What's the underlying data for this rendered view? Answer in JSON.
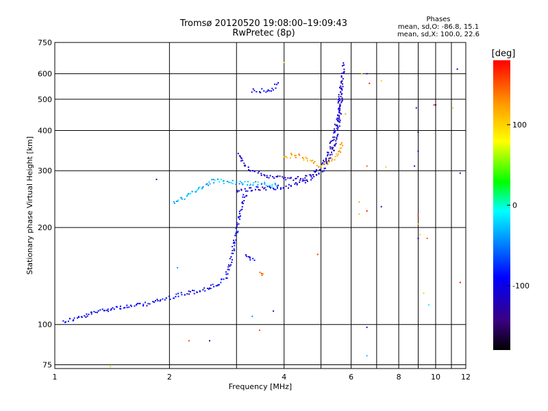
{
  "chart_data": {
    "type": "scatter",
    "title": "Tromsø 20120520 19:08:00–19:09:43",
    "subtitle": "RwPretec (8p)",
    "stats": {
      "heading": "Phases",
      "line1": "mean, sd,O: -86.8, 15.1",
      "line2": "mean, sd,X: 100.0, 22.6"
    },
    "xlabel": "Frequency [MHz]",
    "ylabel": "Stationary phase Virtual Height [km]",
    "x_scale": "log",
    "y_scale": "log",
    "xlim": [
      1,
      12
    ],
    "ylim": [
      73,
      750
    ],
    "x_ticks": [
      1,
      2,
      4,
      6,
      8,
      10,
      12
    ],
    "x_grid": [
      2,
      3,
      4,
      5,
      6,
      7,
      8,
      9,
      10,
      11,
      12
    ],
    "y_ticks": [
      75,
      100,
      200,
      300,
      400,
      500,
      600,
      750
    ],
    "grid": true,
    "colorbar": {
      "label": "[deg]",
      "range": [
        -180,
        180
      ],
      "ticks": [
        100,
        0,
        -100
      ]
    },
    "series": [
      {
        "phase_deg": -95,
        "points": [
          [
            1.05,
            102
          ],
          [
            1.08,
            103
          ],
          [
            1.12,
            104
          ],
          [
            1.16,
            105
          ],
          [
            1.2,
            106
          ],
          [
            1.25,
            108
          ],
          [
            1.3,
            110
          ],
          [
            1.35,
            111
          ],
          [
            1.4,
            112
          ],
          [
            1.45,
            113
          ],
          [
            1.5,
            113
          ],
          [
            1.6,
            114
          ],
          [
            1.7,
            115
          ],
          [
            1.8,
            117
          ],
          [
            1.9,
            119
          ],
          [
            2.0,
            121
          ],
          [
            2.1,
            123
          ],
          [
            2.2,
            125
          ],
          [
            2.3,
            126
          ],
          [
            2.4,
            127
          ],
          [
            2.5,
            129
          ],
          [
            2.6,
            131
          ],
          [
            2.7,
            134
          ],
          [
            2.8,
            139
          ],
          [
            2.85,
            145
          ],
          [
            2.9,
            155
          ],
          [
            2.95,
            175
          ],
          [
            3.0,
            195
          ],
          [
            3.05,
            215
          ],
          [
            3.1,
            235
          ],
          [
            3.15,
            250
          ],
          [
            3.2,
            255
          ]
        ]
      },
      {
        "phase_deg": -110,
        "points": [
          [
            3.0,
            260
          ],
          [
            3.2,
            262
          ],
          [
            3.4,
            264
          ],
          [
            3.6,
            265
          ],
          [
            3.8,
            266
          ],
          [
            4.0,
            267
          ],
          [
            4.2,
            270
          ],
          [
            4.4,
            274
          ],
          [
            4.6,
            280
          ],
          [
            4.8,
            288
          ],
          [
            5.0,
            298
          ],
          [
            5.2,
            315
          ],
          [
            5.35,
            340
          ],
          [
            5.5,
            380
          ],
          [
            5.6,
            430
          ],
          [
            5.65,
            500
          ],
          [
            5.7,
            580
          ],
          [
            5.72,
            650
          ]
        ]
      },
      {
        "phase_deg": -110,
        "points": [
          [
            3.05,
            340
          ],
          [
            3.1,
            320
          ],
          [
            3.2,
            305
          ],
          [
            3.4,
            295
          ],
          [
            3.6,
            290
          ],
          [
            3.8,
            287
          ],
          [
            4.0,
            285
          ],
          [
            4.2,
            283
          ],
          [
            4.4,
            284
          ],
          [
            4.6,
            288
          ],
          [
            4.8,
            296
          ],
          [
            5.0,
            310
          ],
          [
            5.2,
            335
          ],
          [
            5.4,
            380
          ],
          [
            5.55,
            450
          ],
          [
            5.65,
            560
          ]
        ]
      },
      {
        "phase_deg": 120,
        "points": [
          [
            4.0,
            330
          ],
          [
            4.2,
            335
          ],
          [
            4.4,
            333
          ],
          [
            4.6,
            325
          ],
          [
            4.8,
            318
          ],
          [
            5.0,
            312
          ],
          [
            5.2,
            318
          ],
          [
            5.4,
            328
          ],
          [
            5.6,
            345
          ],
          [
            5.7,
            375
          ]
        ]
      },
      {
        "phase_deg": -100,
        "points": [
          [
            3.3,
            530
          ],
          [
            3.5,
            532
          ],
          [
            3.7,
            533
          ],
          [
            3.9,
            560
          ]
        ]
      },
      {
        "phase_deg": -30,
        "points": [
          [
            2.05,
            240
          ],
          [
            2.1,
            242
          ],
          [
            2.4,
            262
          ],
          [
            2.5,
            272
          ],
          [
            2.6,
            279
          ],
          [
            3.9,
            270
          ]
        ]
      },
      {
        "phase_deg": -95,
        "points": [
          [
            3.15,
            165
          ],
          [
            3.25,
            160
          ],
          [
            3.3,
            158
          ],
          [
            3.35,
            155
          ]
        ]
      },
      {
        "phase_deg": 140,
        "points": [
          [
            3.45,
            143
          ],
          [
            3.5,
            142
          ],
          [
            3.55,
            144
          ]
        ]
      }
    ],
    "isolated_points": [
      {
        "x": 1.4,
        "y": 74,
        "phase_deg": 100
      },
      {
        "x": 1.85,
        "y": 282,
        "phase_deg": -150
      },
      {
        "x": 2.25,
        "y": 89,
        "phase_deg": 160
      },
      {
        "x": 2.55,
        "y": 89,
        "phase_deg": -140
      },
      {
        "x": 2.1,
        "y": 150,
        "phase_deg": -40
      },
      {
        "x": 3.3,
        "y": 106,
        "phase_deg": -40
      },
      {
        "x": 3.45,
        "y": 96,
        "phase_deg": 150
      },
      {
        "x": 3.75,
        "y": 110,
        "phase_deg": -140
      },
      {
        "x": 4.9,
        "y": 165,
        "phase_deg": 160
      },
      {
        "x": 6.6,
        "y": 98,
        "phase_deg": -100
      },
      {
        "x": 6.6,
        "y": 80,
        "phase_deg": -30
      },
      {
        "x": 6.3,
        "y": 240,
        "phase_deg": 120
      },
      {
        "x": 6.3,
        "y": 220,
        "phase_deg": 110
      },
      {
        "x": 6.6,
        "y": 225,
        "phase_deg": 170
      },
      {
        "x": 7.2,
        "y": 232,
        "phase_deg": -140
      },
      {
        "x": 6.6,
        "y": 310,
        "phase_deg": 150
      },
      {
        "x": 7.4,
        "y": 308,
        "phase_deg": 100
      },
      {
        "x": 6.4,
        "y": 600,
        "phase_deg": 100
      },
      {
        "x": 6.6,
        "y": 600,
        "phase_deg": -110
      },
      {
        "x": 6.7,
        "y": 560,
        "phase_deg": 170
      },
      {
        "x": 7.2,
        "y": 570,
        "phase_deg": 100
      },
      {
        "x": 8.9,
        "y": 470,
        "phase_deg": -100
      },
      {
        "x": 9.0,
        "y": 395,
        "phase_deg": -150
      },
      {
        "x": 9.0,
        "y": 345,
        "phase_deg": -110
      },
      {
        "x": 8.8,
        "y": 310,
        "phase_deg": -110
      },
      {
        "x": 9.0,
        "y": 218,
        "phase_deg": 160
      },
      {
        "x": 9.0,
        "y": 205,
        "phase_deg": 120
      },
      {
        "x": 9.1,
        "y": 190,
        "phase_deg": 100
      },
      {
        "x": 9.0,
        "y": 185,
        "phase_deg": -110
      },
      {
        "x": 9.3,
        "y": 125,
        "phase_deg": 100
      },
      {
        "x": 9.6,
        "y": 115,
        "phase_deg": -10
      },
      {
        "x": 9.5,
        "y": 185,
        "phase_deg": 150
      },
      {
        "x": 9.9,
        "y": 480,
        "phase_deg": 170
      },
      {
        "x": 10.0,
        "y": 480,
        "phase_deg": -150
      },
      {
        "x": 11.1,
        "y": 470,
        "phase_deg": 100
      },
      {
        "x": 11.4,
        "y": 620,
        "phase_deg": -110
      },
      {
        "x": 11.6,
        "y": 295,
        "phase_deg": -110
      },
      {
        "x": 11.6,
        "y": 135,
        "phase_deg": 175
      },
      {
        "x": 4.0,
        "y": 650,
        "phase_deg": 100
      },
      {
        "x": 5.8,
        "y": 450,
        "phase_deg": 120
      }
    ]
  }
}
